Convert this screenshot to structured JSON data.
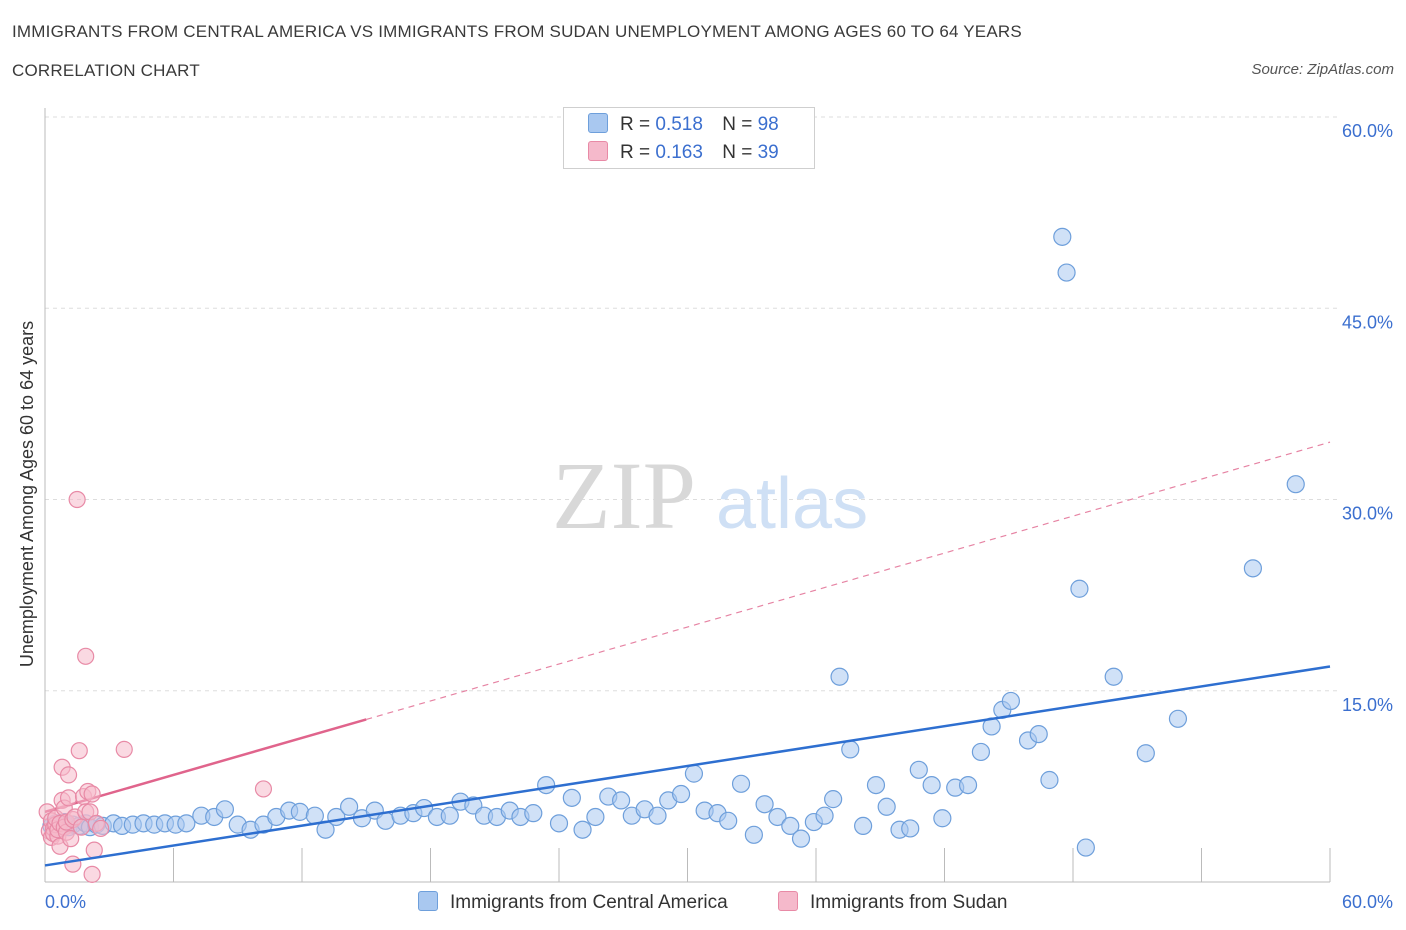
{
  "title": "IMMIGRANTS FROM CENTRAL AMERICA VS IMMIGRANTS FROM SUDAN UNEMPLOYMENT AMONG AGES 60 TO 64 YEARS",
  "subtitle": "CORRELATION CHART",
  "source": "Source: ZipAtlas.com",
  "watermark": {
    "zip": "ZIP",
    "atlas": "atlas"
  },
  "legend": {
    "r_label": "R =",
    "n_label": "N =",
    "rows": [
      {
        "r": "0.518",
        "n": "98"
      },
      {
        "r": "0.163",
        "n": "39"
      }
    ]
  },
  "colors": {
    "blue_fill": "#a9c8f0",
    "blue_stroke": "#6e9fdb",
    "blue_line": "#2e6fd0",
    "pink_fill": "#f5b9cb",
    "pink_stroke": "#e88aa6",
    "pink_line": "#e0648c",
    "axis_text": "#3b6fcf",
    "grid": "#dddddd"
  },
  "chart_data": {
    "type": "scatter",
    "title": "IMMIGRANTS FROM CENTRAL AMERICA VS IMMIGRANTS FROM SUDAN UNEMPLOYMENT AMONG AGES 60 TO 64 YEARS",
    "xlabel": "",
    "ylabel": "Unemployment Among Ages 60 to 64 years",
    "xlim": [
      0,
      60
    ],
    "ylim": [
      0,
      60
    ],
    "x_tick_labels": [
      "0.0%",
      "60.0%"
    ],
    "y_tick_labels": [
      "15.0%",
      "30.0%",
      "45.0%",
      "60.0%"
    ],
    "y_ticks": [
      15,
      30,
      45,
      60
    ],
    "grid": true,
    "legend_position": "top-center",
    "series": [
      {
        "name": "Immigrants from Central America",
        "color": "blue",
        "R": 0.518,
        "N": 98,
        "trend": {
          "x": [
            0,
            60
          ],
          "y": [
            1.3,
            16.9
          ],
          "style": "solid"
        },
        "points": [
          [
            0.3,
            4.4
          ],
          [
            0.5,
            4.6
          ],
          [
            0.7,
            4.2
          ],
          [
            0.9,
            4.7
          ],
          [
            1.1,
            4.3
          ],
          [
            1.3,
            4.5
          ],
          [
            1.6,
            4.4
          ],
          [
            1.9,
            4.6
          ],
          [
            2.1,
            4.3
          ],
          [
            2.4,
            4.5
          ],
          [
            2.7,
            4.4
          ],
          [
            3.2,
            4.6
          ],
          [
            3.6,
            4.4
          ],
          [
            4.1,
            4.5
          ],
          [
            4.6,
            4.6
          ],
          [
            5.1,
            4.5
          ],
          [
            5.6,
            4.6
          ],
          [
            6.1,
            4.5
          ],
          [
            6.6,
            4.6
          ],
          [
            7.3,
            5.2
          ],
          [
            7.9,
            5.1
          ],
          [
            8.4,
            5.7
          ],
          [
            9.0,
            4.5
          ],
          [
            9.6,
            4.1
          ],
          [
            10.2,
            4.5
          ],
          [
            10.8,
            5.1
          ],
          [
            11.4,
            5.6
          ],
          [
            11.9,
            5.5
          ],
          [
            12.6,
            5.2
          ],
          [
            13.1,
            4.1
          ],
          [
            13.6,
            5.1
          ],
          [
            14.2,
            5.9
          ],
          [
            14.8,
            5.0
          ],
          [
            15.4,
            5.6
          ],
          [
            15.9,
            4.8
          ],
          [
            16.6,
            5.2
          ],
          [
            17.2,
            5.4
          ],
          [
            17.7,
            5.8
          ],
          [
            18.3,
            5.1
          ],
          [
            18.9,
            5.2
          ],
          [
            19.4,
            6.3
          ],
          [
            20.0,
            6.0
          ],
          [
            20.5,
            5.2
          ],
          [
            21.1,
            5.1
          ],
          [
            21.7,
            5.6
          ],
          [
            22.2,
            5.1
          ],
          [
            22.8,
            5.4
          ],
          [
            23.4,
            7.6
          ],
          [
            24.0,
            4.6
          ],
          [
            24.6,
            6.6
          ],
          [
            25.1,
            4.1
          ],
          [
            25.7,
            5.1
          ],
          [
            26.3,
            6.7
          ],
          [
            26.9,
            6.4
          ],
          [
            27.4,
            5.2
          ],
          [
            28.0,
            5.7
          ],
          [
            28.6,
            5.2
          ],
          [
            29.1,
            6.4
          ],
          [
            29.7,
            6.9
          ],
          [
            30.3,
            8.5
          ],
          [
            30.8,
            5.6
          ],
          [
            31.4,
            5.4
          ],
          [
            31.9,
            4.8
          ],
          [
            32.5,
            7.7
          ],
          [
            33.1,
            3.7
          ],
          [
            33.6,
            6.1
          ],
          [
            34.2,
            5.1
          ],
          [
            34.8,
            4.4
          ],
          [
            35.3,
            3.4
          ],
          [
            35.9,
            4.7
          ],
          [
            36.4,
            5.2
          ],
          [
            36.8,
            6.5
          ],
          [
            37.1,
            16.1
          ],
          [
            37.6,
            10.4
          ],
          [
            38.2,
            4.4
          ],
          [
            38.8,
            7.6
          ],
          [
            39.3,
            5.9
          ],
          [
            39.9,
            4.1
          ],
          [
            40.4,
            4.2
          ],
          [
            40.8,
            8.8
          ],
          [
            41.4,
            7.6
          ],
          [
            41.9,
            5.0
          ],
          [
            42.5,
            7.4
          ],
          [
            43.1,
            7.6
          ],
          [
            43.7,
            10.2
          ],
          [
            44.2,
            12.2
          ],
          [
            44.7,
            13.5
          ],
          [
            45.1,
            14.2
          ],
          [
            45.9,
            11.1
          ],
          [
            46.4,
            11.6
          ],
          [
            46.9,
            8.0
          ],
          [
            47.5,
            50.6
          ],
          [
            47.7,
            47.8
          ],
          [
            48.3,
            23.0
          ],
          [
            48.6,
            2.7
          ],
          [
            49.9,
            16.1
          ],
          [
            51.4,
            10.1
          ],
          [
            52.9,
            12.8
          ],
          [
            56.4,
            24.6
          ],
          [
            58.4,
            31.2
          ]
        ]
      },
      {
        "name": "Immigrants from Sudan",
        "color": "pink",
        "R": 0.163,
        "N": 39,
        "trend": {
          "x": [
            0,
            60
          ],
          "y": [
            5.5,
            34.5
          ],
          "style": "solid 0-15, dashed beyond"
        },
        "points": [
          [
            0.1,
            5.5
          ],
          [
            0.2,
            4.0
          ],
          [
            0.3,
            3.5
          ],
          [
            0.3,
            4.8
          ],
          [
            0.4,
            4.2
          ],
          [
            0.4,
            3.8
          ],
          [
            0.5,
            4.5
          ],
          [
            0.5,
            5.0
          ],
          [
            0.6,
            3.6
          ],
          [
            0.6,
            4.1
          ],
          [
            0.7,
            4.6
          ],
          [
            0.7,
            2.8
          ],
          [
            0.8,
            6.4
          ],
          [
            0.8,
            9.0
          ],
          [
            0.9,
            4.3
          ],
          [
            0.9,
            5.8
          ],
          [
            1.0,
            3.9
          ],
          [
            1.0,
            4.7
          ],
          [
            1.1,
            6.6
          ],
          [
            1.1,
            8.4
          ],
          [
            1.2,
            3.4
          ],
          [
            1.3,
            4.9
          ],
          [
            1.3,
            1.4
          ],
          [
            1.4,
            5.1
          ],
          [
            1.5,
            30.0
          ],
          [
            1.6,
            10.3
          ],
          [
            1.7,
            4.3
          ],
          [
            1.8,
            6.7
          ],
          [
            1.9,
            5.5
          ],
          [
            1.9,
            17.7
          ],
          [
            2.0,
            7.1
          ],
          [
            2.1,
            5.5
          ],
          [
            2.2,
            6.9
          ],
          [
            2.2,
            0.6
          ],
          [
            2.3,
            2.5
          ],
          [
            2.4,
            4.6
          ],
          [
            2.6,
            4.2
          ],
          [
            3.7,
            10.4
          ],
          [
            10.2,
            7.3
          ]
        ]
      }
    ]
  },
  "bottom_legend": [
    "Immigrants from Central America",
    "Immigrants from Sudan"
  ]
}
